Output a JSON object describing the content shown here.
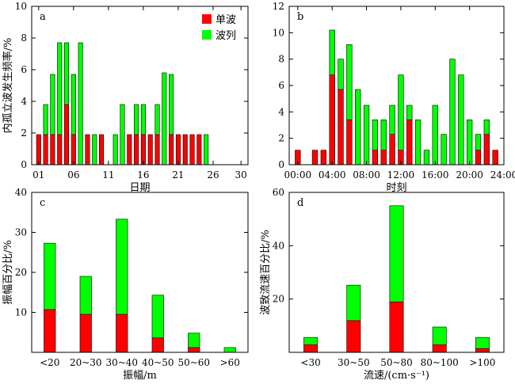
{
  "colors": {
    "single": "#ff0000",
    "train": "#00ff00",
    "axis": "#000000"
  },
  "chart_data": [
    {
      "type": "bar",
      "stacked": true,
      "panel_label": "a",
      "xlabel": "日期",
      "ylabel": "内孤立波发生频率/%",
      "xlim": [
        0,
        31
      ],
      "ylim": [
        0,
        10
      ],
      "x_ticks": [
        1,
        6,
        11,
        16,
        21,
        26,
        30
      ],
      "x_tick_labels": [
        "01",
        "06",
        "11",
        "16",
        "21",
        "26",
        "30"
      ],
      "y_ticks": [
        0,
        2,
        4,
        6,
        8,
        10
      ],
      "y_tick_labels": [
        "0",
        "2",
        "4",
        "6",
        "8",
        "10"
      ],
      "legend": {
        "position": "top-right",
        "entries": [
          "单波",
          "波列"
        ]
      },
      "x": [
        1,
        2,
        3,
        4,
        5,
        6,
        7,
        8,
        9,
        10,
        11,
        12,
        13,
        14,
        15,
        16,
        17,
        18,
        19,
        20,
        21,
        22,
        23,
        24,
        25,
        26,
        27,
        28,
        29,
        30
      ],
      "series": [
        {
          "name": "单波",
          "values": [
            1.9,
            1.9,
            1.9,
            1.9,
            3.8,
            1.9,
            0,
            1.9,
            0,
            1.9,
            0,
            0,
            0,
            1.9,
            1.9,
            1.9,
            1.9,
            1.9,
            0,
            1.9,
            1.9,
            1.9,
            1.9,
            1.9,
            0,
            0,
            0,
            0,
            0,
            0
          ]
        },
        {
          "name": "波列",
          "values": [
            0,
            1.9,
            3.8,
            5.8,
            3.9,
            3.8,
            7.7,
            0,
            1.9,
            0,
            0,
            1.9,
            3.8,
            0,
            1.9,
            1.9,
            0,
            1.9,
            5.8,
            3.8,
            0,
            0,
            0,
            0,
            1.9,
            0,
            0,
            0,
            0,
            0
          ]
        }
      ]
    },
    {
      "type": "bar",
      "stacked": true,
      "panel_label": "b",
      "xlabel": "时刻",
      "ylabel": "",
      "xlim": [
        -1,
        24
      ],
      "ylim": [
        0,
        12
      ],
      "x_ticks": [
        0,
        4,
        8,
        12,
        16,
        20,
        24
      ],
      "x_tick_labels": [
        "00:00",
        "04:00",
        "08:00",
        "12:00",
        "16:00",
        "20:00",
        "24:00"
      ],
      "y_ticks": [
        0,
        2,
        4,
        6,
        8,
        10,
        12
      ],
      "y_tick_labels": [
        "0",
        "2",
        "4",
        "6",
        "8",
        "10",
        "12"
      ],
      "x": [
        0,
        1,
        2,
        3,
        4,
        5,
        6,
        7,
        8,
        9,
        10,
        11,
        12,
        13,
        14,
        15,
        16,
        17,
        18,
        19,
        20,
        21,
        22,
        23
      ],
      "series": [
        {
          "name": "单波",
          "values": [
            1.1,
            0,
            1.1,
            1.1,
            6.8,
            5.7,
            3.4,
            0,
            0,
            1.1,
            1.1,
            2.3,
            1.1,
            3.4,
            0,
            0,
            0,
            0,
            0,
            0,
            0,
            1.1,
            2.3,
            1.1
          ]
        },
        {
          "name": "波列",
          "values": [
            0,
            0,
            0,
            0,
            3.4,
            2.3,
            5.7,
            5.7,
            4.5,
            2.3,
            2.3,
            2.2,
            5.7,
            1.1,
            3.4,
            1.1,
            4.5,
            2.3,
            8.0,
            6.8,
            3.4,
            1.2,
            1.1,
            0
          ]
        }
      ]
    },
    {
      "type": "bar",
      "stacked": true,
      "panel_label": "c",
      "xlabel": "振幅/m",
      "ylabel": "振幅百分比/%",
      "ylim": [
        0,
        40
      ],
      "y_ticks": [
        10,
        20,
        30,
        40
      ],
      "y_tick_labels": [
        "10",
        "20",
        "30",
        "40"
      ],
      "categories": [
        "<20",
        "20~30",
        "30~40",
        "40~50",
        "50~60",
        ">60"
      ],
      "series": [
        {
          "name": "单波",
          "values": [
            10.7,
            9.5,
            9.5,
            3.6,
            1.2,
            0
          ]
        },
        {
          "name": "波列",
          "values": [
            16.6,
            9.5,
            23.8,
            10.7,
            3.6,
            1.2
          ]
        }
      ]
    },
    {
      "type": "bar",
      "stacked": true,
      "panel_label": "d",
      "xlabel": "流速/(cm·s⁻¹)",
      "ylabel": "波致流速百分比/%",
      "ylim": [
        0,
        60
      ],
      "y_ticks": [
        20,
        40,
        60
      ],
      "y_tick_labels": [
        "20",
        "40",
        "60"
      ],
      "categories": [
        "<30",
        "30~50",
        "50~80",
        "80~100",
        ">100"
      ],
      "series": [
        {
          "name": "单波",
          "values": [
            2.8,
            11.9,
            18.9,
            2.8,
            1.4
          ]
        },
        {
          "name": "波列",
          "values": [
            2.8,
            13.3,
            36.1,
            6.7,
            4.2
          ]
        }
      ]
    }
  ]
}
